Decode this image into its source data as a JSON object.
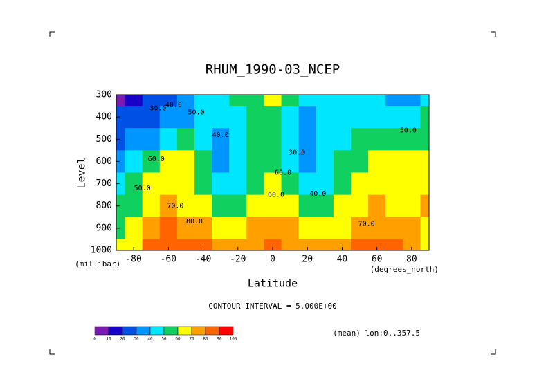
{
  "chart_data": {
    "type": "contour",
    "title": "RHUM_1990-03_NCEP",
    "x_label": "Latitude",
    "y_label": "Level",
    "x_units": "(degrees_north)",
    "y_units": "(millibar)",
    "contour_note": "CONTOUR INTERVAL = 5.000E+00",
    "footnote": "(mean) lon:0..357.5",
    "xlim": [
      -90,
      90
    ],
    "ylim": [
      1000,
      300
    ],
    "xticks": [
      -80,
      -60,
      -40,
      -20,
      0,
      20,
      40,
      60,
      80
    ],
    "yticks": [
      300,
      400,
      500,
      600,
      700,
      800,
      900,
      1000
    ],
    "x": [
      -90,
      -80,
      -70,
      -60,
      -50,
      -40,
      -30,
      -20,
      -10,
      0,
      10,
      20,
      30,
      40,
      50,
      60,
      70,
      80,
      90
    ],
    "y": [
      300,
      400,
      500,
      600,
      700,
      800,
      900,
      1000
    ],
    "z": [
      [
        5,
        15,
        20,
        25,
        30,
        40,
        45,
        50,
        55,
        65,
        55,
        45,
        45,
        45,
        45,
        40,
        35,
        35,
        40
      ],
      [
        20,
        25,
        25,
        30,
        35,
        45,
        40,
        45,
        55,
        55,
        45,
        30,
        40,
        45,
        45,
        45,
        45,
        45,
        50
      ],
      [
        25,
        30,
        35,
        40,
        50,
        45,
        35,
        40,
        50,
        50,
        40,
        30,
        40,
        45,
        50,
        55,
        50,
        50,
        55
      ],
      [
        30,
        40,
        55,
        60,
        60,
        50,
        35,
        40,
        50,
        55,
        45,
        35,
        40,
        50,
        55,
        60,
        60,
        60,
        60
      ],
      [
        40,
        50,
        60,
        65,
        60,
        55,
        45,
        45,
        55,
        60,
        50,
        40,
        45,
        55,
        60,
        65,
        65,
        60,
        65
      ],
      [
        50,
        55,
        65,
        70,
        65,
        60,
        55,
        55,
        60,
        65,
        60,
        50,
        55,
        60,
        65,
        70,
        65,
        65,
        70
      ],
      [
        55,
        60,
        75,
        80,
        75,
        70,
        65,
        65,
        70,
        75,
        70,
        65,
        65,
        65,
        70,
        75,
        75,
        70,
        60
      ],
      [
        60,
        65,
        80,
        85,
        80,
        80,
        75,
        75,
        75,
        80,
        75,
        75,
        75,
        75,
        80,
        80,
        80,
        75,
        65
      ]
    ],
    "levels": [
      0,
      10,
      20,
      30,
      40,
      50,
      60,
      70,
      80,
      90,
      100
    ],
    "colors": [
      "#7a1ab0",
      "#1800c8",
      "#0050e6",
      "#0096ff",
      "#00e6ff",
      "#10d060",
      "#ffff00",
      "#ffa000",
      "#ff6400",
      "#ff0000"
    ],
    "annotations": [
      {
        "text": "30.0",
        "x": -66,
        "y": 360
      },
      {
        "text": "40.0",
        "x": -57,
        "y": 345
      },
      {
        "text": "50.0",
        "x": -44,
        "y": 380
      },
      {
        "text": "40.0",
        "x": -30,
        "y": 480
      },
      {
        "text": "60.0",
        "x": -67,
        "y": 590
      },
      {
        "text": "50.0",
        "x": -75,
        "y": 720
      },
      {
        "text": "70.0",
        "x": -56,
        "y": 800
      },
      {
        "text": "80.0",
        "x": -45,
        "y": 870
      },
      {
        "text": "30.0",
        "x": 14,
        "y": 560
      },
      {
        "text": "60.0",
        "x": 6,
        "y": 650
      },
      {
        "text": "60.0",
        "x": 2,
        "y": 750
      },
      {
        "text": "40.0",
        "x": 26,
        "y": 745
      },
      {
        "text": "70.0",
        "x": 54,
        "y": 880
      },
      {
        "text": "50.0",
        "x": 78,
        "y": 460
      }
    ]
  }
}
